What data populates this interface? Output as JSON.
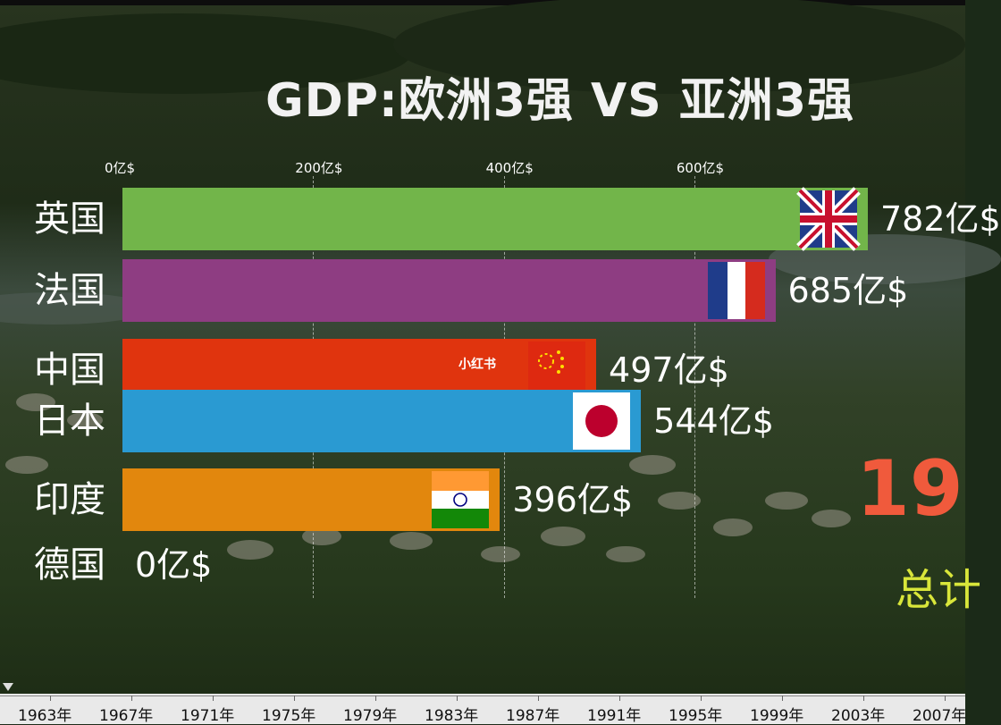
{
  "chart_data": {
    "type": "bar",
    "orientation": "horizontal",
    "title": "GDP:欧洲3强 VS 亚洲3强",
    "x_ticks": [
      "0亿$",
      "200亿$",
      "400亿$",
      "600亿$"
    ],
    "xlim": [
      0,
      782
    ],
    "grid": true,
    "categories": [
      "英国",
      "法国",
      "中国",
      "日本",
      "印度",
      "德国"
    ],
    "values": [
      782,
      685,
      497,
      544,
      396,
      0
    ],
    "value_labels": [
      "782亿$",
      "685亿$",
      "497亿$",
      "544亿$",
      "396亿$",
      "0亿$"
    ],
    "colors": [
      "#72b54a",
      "#8e3d82",
      "#e0340e",
      "#2a9ad2",
      "#e2870d",
      "#888888"
    ],
    "flags": [
      "uk-flag-icon",
      "france-flag-icon",
      "china-flag-icon",
      "japan-flag-icon",
      "india-flag-icon",
      ""
    ],
    "year": "19",
    "total_label": "总计",
    "watermark": "小红书",
    "timeline_labels": [
      "1963年",
      "1967年",
      "1971年",
      "1975年",
      "1979年",
      "1983年",
      "1987年",
      "1991年",
      "1995年",
      "1999年",
      "2003年",
      "2007年"
    ]
  }
}
